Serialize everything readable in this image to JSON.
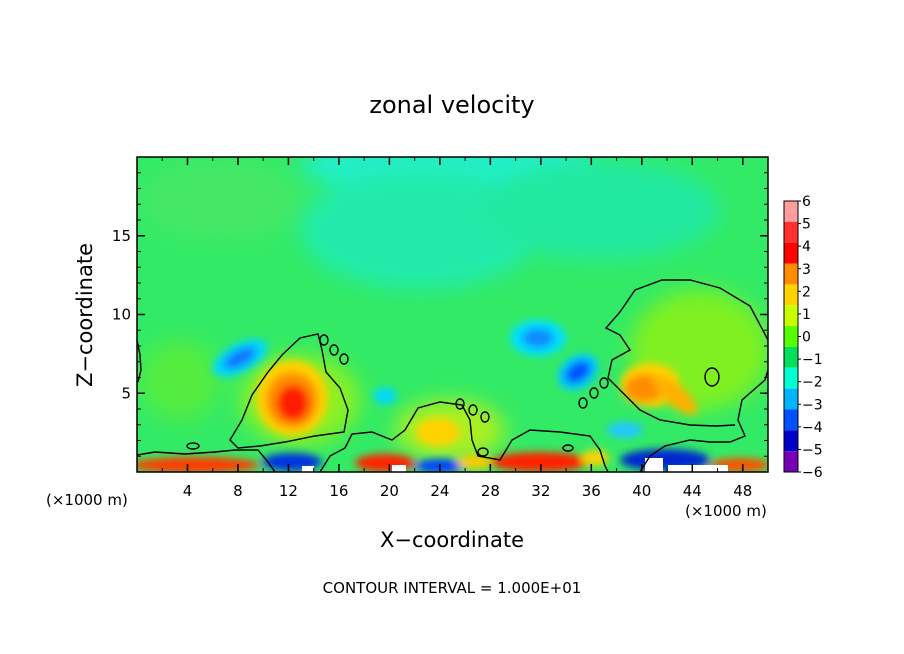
{
  "chart_data": {
    "type": "heatmap",
    "title": "zonal velocity",
    "xlabel": "X−coordinate",
    "ylabel": "Z−coordinate",
    "x_unit_label": "(×1000 m)",
    "footer": "CONTOUR INTERVAL = 1.000E+01",
    "xlim": [
      0,
      50
    ],
    "ylim": [
      0,
      20
    ],
    "x_ticks": [
      4,
      8,
      12,
      16,
      20,
      24,
      28,
      32,
      36,
      40,
      44,
      48
    ],
    "y_ticks": [
      5,
      10,
      15
    ],
    "colorbar": {
      "levels": [
        6,
        5,
        4,
        3,
        2,
        1,
        0,
        -1,
        -2,
        -3,
        -4,
        -5,
        -6
      ],
      "colors": [
        "#ff9c9c",
        "#ff3030",
        "#ff0000",
        "#ff8c00",
        "#ffd200",
        "#c8ff00",
        "#55ff00",
        "#00e05a",
        "#00ffd2",
        "#00b4ff",
        "#0050ff",
        "#0000c8",
        "#7800b4"
      ]
    },
    "features": [
      {
        "x": 13.0,
        "z": 4.5,
        "value": 5,
        "label": "positive max"
      },
      {
        "x": 7.5,
        "z": 7.5,
        "value": -3,
        "label": "negative"
      },
      {
        "x": 32.5,
        "z": 8.5,
        "value": -3,
        "label": "negative"
      },
      {
        "x": 35.0,
        "z": 6.5,
        "value": -4,
        "label": "negative"
      },
      {
        "x": 40.5,
        "z": 5.0,
        "value": 4,
        "label": "positive"
      },
      {
        "x": 43.5,
        "z": 4.0,
        "value": 3,
        "label": "positive"
      },
      {
        "x": 20.0,
        "z": 0.8,
        "value": 4,
        "label": "surface"
      },
      {
        "x": 33.0,
        "z": 0.8,
        "value": 4,
        "label": "surface"
      },
      {
        "x": 42.0,
        "z": 1.0,
        "value": -5,
        "label": "surface"
      }
    ]
  }
}
